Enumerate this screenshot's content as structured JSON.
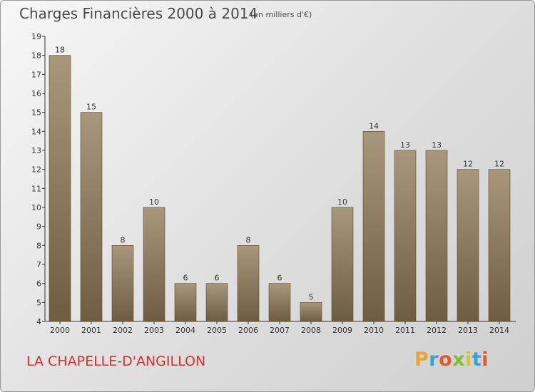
{
  "header": {
    "title": "Charges Financières 2000 à 2014",
    "unit": "(en milliers d'€)"
  },
  "footer": {
    "place": "LA CHAPELLE-D'ANGILLON",
    "brand": "Proxiti",
    "brand_letters": [
      "P",
      "r",
      "o",
      "x",
      "i",
      "t",
      "i"
    ],
    "brand_colors": [
      "#e8a33a",
      "#3aa0d8",
      "#e05a2b",
      "#7bbf3a",
      "#d8c23a",
      "#3aa0d8",
      "#e05a2b"
    ]
  },
  "colors": {
    "bar_top": "#a8977a",
    "bar_bottom": "#6f5d40",
    "title": "#4a4a4a",
    "place": "#d2322d"
  },
  "chart_data": {
    "type": "bar",
    "title": "Charges Financières 2000 à 2014",
    "subtitle": "(en milliers d'€)",
    "xlabel": "",
    "ylabel": "",
    "categories": [
      "2000",
      "2001",
      "2002",
      "2003",
      "2004",
      "2005",
      "2006",
      "2007",
      "2008",
      "2009",
      "2010",
      "2011",
      "2012",
      "2013",
      "2014"
    ],
    "values": [
      18,
      15,
      8,
      10,
      6,
      6,
      8,
      6,
      5,
      10,
      14,
      13,
      13,
      12,
      12
    ],
    "ylim": [
      4,
      19
    ],
    "yticks": [
      4,
      5,
      6,
      7,
      8,
      9,
      10,
      11,
      12,
      13,
      14,
      15,
      16,
      17,
      18,
      19
    ],
    "grid": false,
    "data_labels": true
  }
}
